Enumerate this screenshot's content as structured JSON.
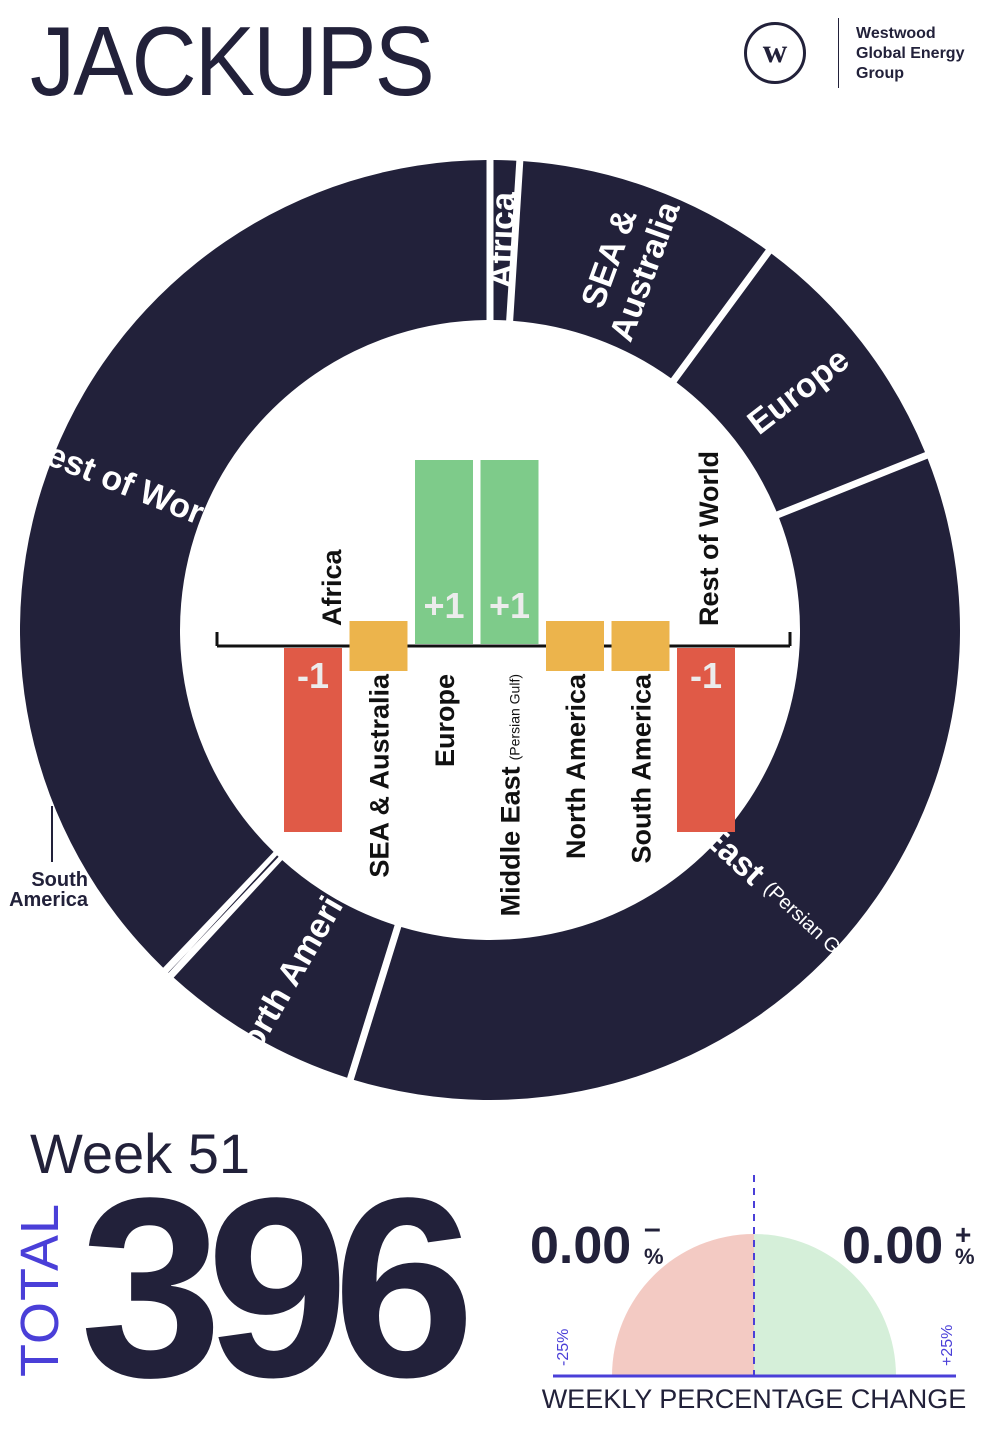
{
  "header": {
    "title": "JACKUPS",
    "logo_mark": "w",
    "logo_lines": [
      "Westwood",
      "Global Energy",
      "Group"
    ]
  },
  "footer": {
    "week": "Week 51",
    "total_label": "TOTAL",
    "total_value": "396"
  },
  "colors": {
    "ring": "#22213a",
    "increase": "#7ecb8a",
    "decrease": "#e05a47",
    "no_change": "#ecb44c",
    "accent": "#4a3fd8",
    "gauge_negative": "#f3cac3",
    "gauge_positive": "#d5efd9",
    "label_on_bar": "#ececec"
  },
  "chart_data": [
    {
      "type": "pie",
      "variant": "donut",
      "slices": [
        {
          "label": "Africa",
          "sublabel": "",
          "value": 4
        },
        {
          "label": "SEA & Australia",
          "sublabel": "",
          "value": 36
        },
        {
          "label": "Europe",
          "sublabel": "",
          "value": 35
        },
        {
          "label": "Middle East",
          "sublabel": "(Persian Gulf & Red Sea)",
          "value": 142
        },
        {
          "label": "North America",
          "sublabel": "",
          "value": 28
        },
        {
          "label": "South America",
          "sublabel": "",
          "value": 1
        },
        {
          "label": "Rest of World",
          "sublabel": "",
          "value": 150
        }
      ],
      "outside_label": [
        "South",
        "America"
      ]
    },
    {
      "type": "bar",
      "title": "",
      "categories": [
        "Africa",
        "SEA & Australia",
        "Europe",
        "Middle East",
        "North America",
        "South America",
        "Rest of World"
      ],
      "category_sublabels": [
        "",
        "",
        "",
        "(Persian Gulf)",
        "",
        "",
        ""
      ],
      "values": [
        -1,
        0,
        1,
        1,
        0,
        0,
        -1
      ],
      "value_labels": [
        "-1",
        "",
        "+1",
        "+1",
        "",
        "",
        "-1"
      ],
      "ylim": [
        -1,
        1
      ]
    },
    {
      "type": "gauge",
      "title": "WEEKLY PERCENTAGE CHANGE",
      "decrease_value": "0.00",
      "decrease_sign": "–",
      "increase_value": "0.00",
      "increase_sign": "+",
      "percent_symbol": "%",
      "min_label": "-25%",
      "max_label": "+25%",
      "decrease_pct": 0.0,
      "increase_pct": 0.0,
      "range": [
        -25,
        25
      ]
    }
  ]
}
